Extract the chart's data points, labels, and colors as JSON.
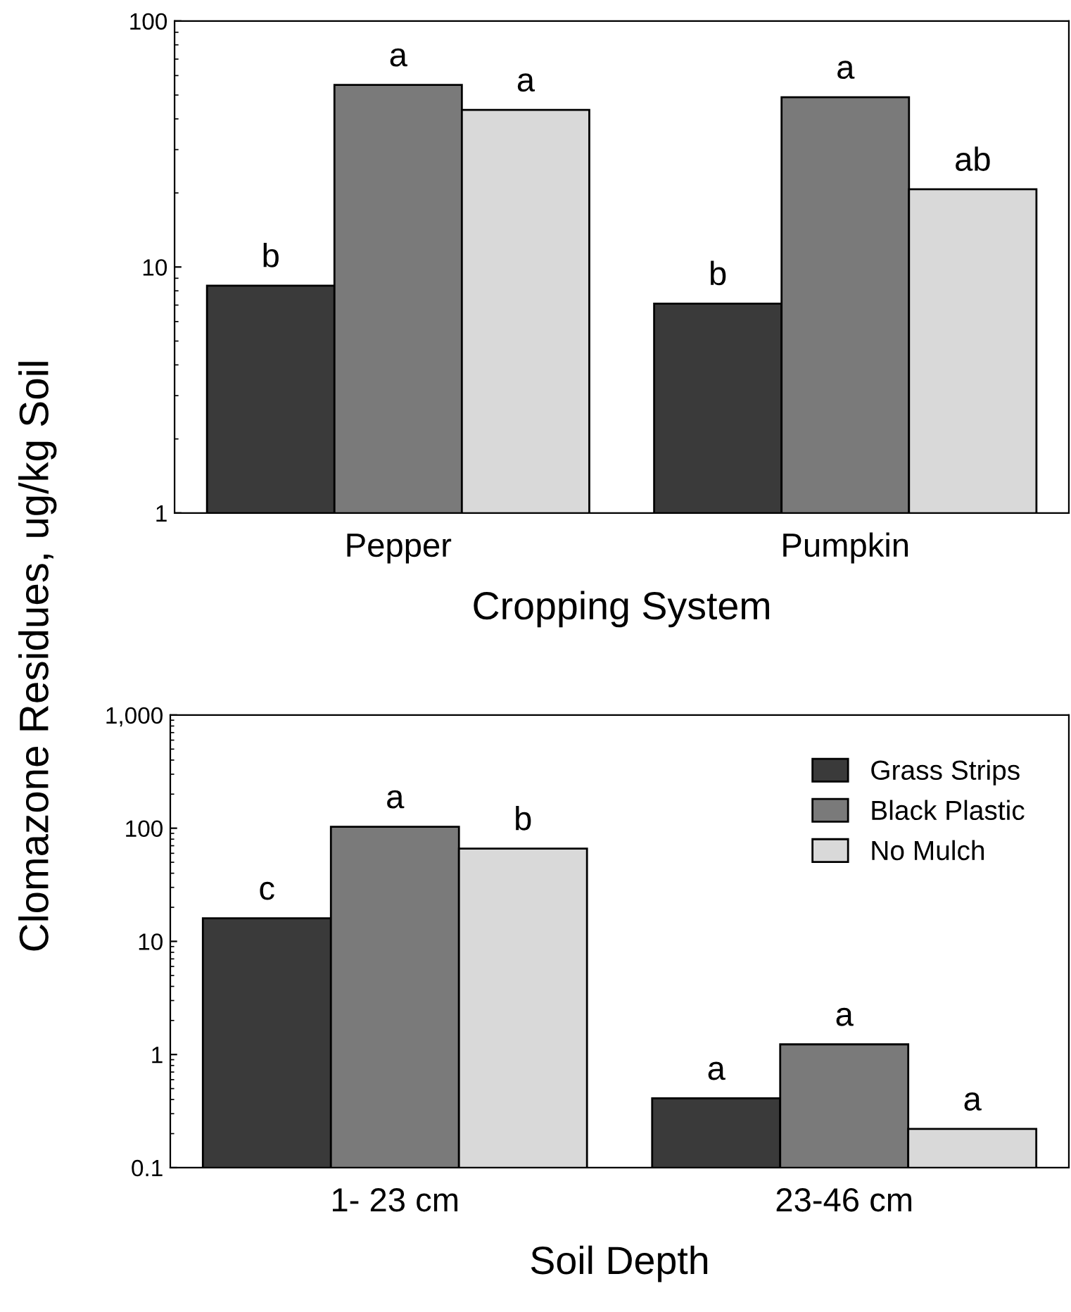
{
  "chart_data": [
    {
      "type": "bar",
      "ylabel": "Clomazone Residues, ug/kg Soil",
      "xlabel": "Cropping System",
      "categories": [
        "Pepper",
        "Pumpkin"
      ],
      "log": true,
      "ylim": [
        1,
        100
      ],
      "yticks": [
        1,
        10,
        100
      ],
      "grid": false,
      "legend": false,
      "series": [
        {
          "color": "#3a3a3a",
          "values": [
            8.4,
            7.1
          ],
          "value_labels": [
            "b",
            "b"
          ]
        },
        {
          "color": "#7a7a7a",
          "values": [
            55,
            49
          ],
          "value_labels": [
            "a",
            "a"
          ]
        },
        {
          "color": "#d9d9d9",
          "values": [
            43.5,
            20.7
          ],
          "value_labels": [
            "a",
            "ab"
          ]
        }
      ]
    },
    {
      "type": "bar",
      "xlabel": "Soil Depth",
      "categories": [
        "1- 23 cm",
        "23-46 cm"
      ],
      "log": true,
      "ylim": [
        0.1,
        1000
      ],
      "yticks": [
        0.1,
        1,
        10,
        100,
        {
          "value": 1000,
          "label": "1,000"
        }
      ],
      "grid": false,
      "legend": "top right",
      "series": [
        {
          "name": "Grass Strips",
          "color": "#3a3a3a",
          "values": [
            16,
            0.41
          ],
          "value_labels": [
            "c",
            "a"
          ]
        },
        {
          "name": "Black Plastic",
          "color": "#7a7a7a",
          "values": [
            103,
            1.23
          ],
          "value_labels": [
            "a",
            "a"
          ]
        },
        {
          "name": "No Mulch",
          "color": "#d9d9d9",
          "values": [
            66,
            0.22
          ],
          "value_labels": [
            "b",
            "a"
          ]
        }
      ]
    }
  ]
}
